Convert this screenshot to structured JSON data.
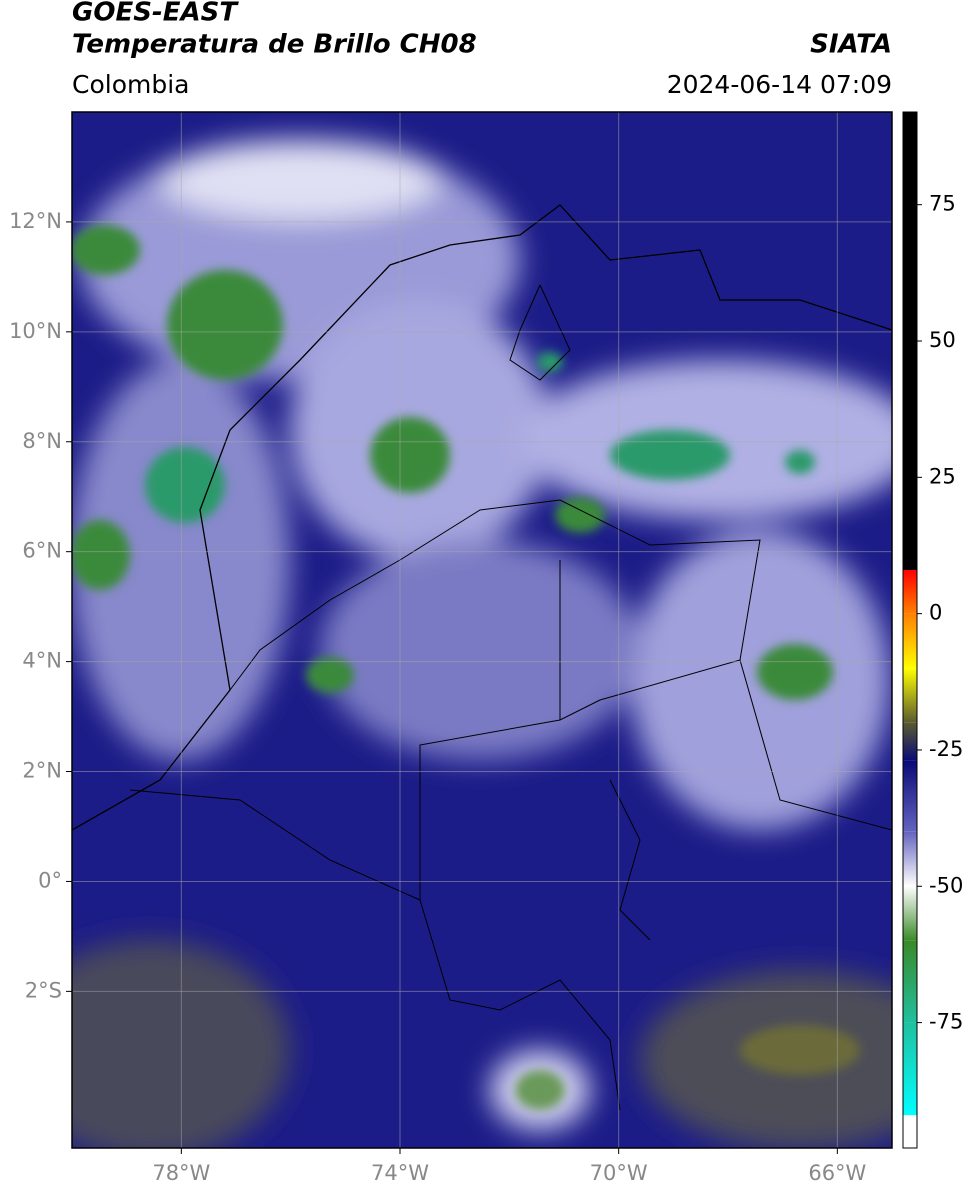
{
  "map": {
    "title": "GOES-EAST",
    "subtitle": "Temperatura de Brillo CH08",
    "source": "SIATA",
    "region": "Colombia",
    "datetime": "2024-06-14 07:09",
    "lonlim": [
      -80,
      -65
    ],
    "latlim": [
      -4.85,
      14
    ],
    "lonticks": [
      {
        "value": -78,
        "label": "78°W"
      },
      {
        "value": -74,
        "label": "74°W"
      },
      {
        "value": -70,
        "label": "70°W"
      },
      {
        "value": -66,
        "label": "66°W"
      }
    ],
    "latticks": [
      {
        "value": -2,
        "label": "2°S"
      },
      {
        "value": 0,
        "label": "0°"
      },
      {
        "value": 2,
        "label": "2°N"
      },
      {
        "value": 4,
        "label": "4°N"
      },
      {
        "value": 6,
        "label": "6°N"
      },
      {
        "value": 8,
        "label": "8°N"
      },
      {
        "value": 10,
        "label": "10°N"
      },
      {
        "value": 12,
        "label": "12°N"
      }
    ],
    "grid": true,
    "colorbar": {
      "lim": [
        -98,
        92
      ],
      "ticks": [
        -75,
        -50,
        -25,
        0,
        25,
        50,
        75
      ],
      "stops": [
        {
          "value": 92,
          "color": "#000000"
        },
        {
          "value": 8,
          "color": "#000000"
        },
        {
          "value": 8,
          "color": "#ff0000"
        },
        {
          "value": 0,
          "color": "#ff8000"
        },
        {
          "value": -10,
          "color": "#ffff00"
        },
        {
          "value": -20,
          "color": "#5a5a30"
        },
        {
          "value": -27,
          "color": "#0a0a78"
        },
        {
          "value": -40,
          "color": "#6464c0"
        },
        {
          "value": -50,
          "color": "#ffffff"
        },
        {
          "value": -60,
          "color": "#3a8a28"
        },
        {
          "value": -75,
          "color": "#20c0a0"
        },
        {
          "value": -92,
          "color": "#00ffff"
        },
        {
          "value": -92,
          "color": "#ffffff"
        },
        {
          "value": -98,
          "color": "#ffffff"
        }
      ]
    }
  }
}
